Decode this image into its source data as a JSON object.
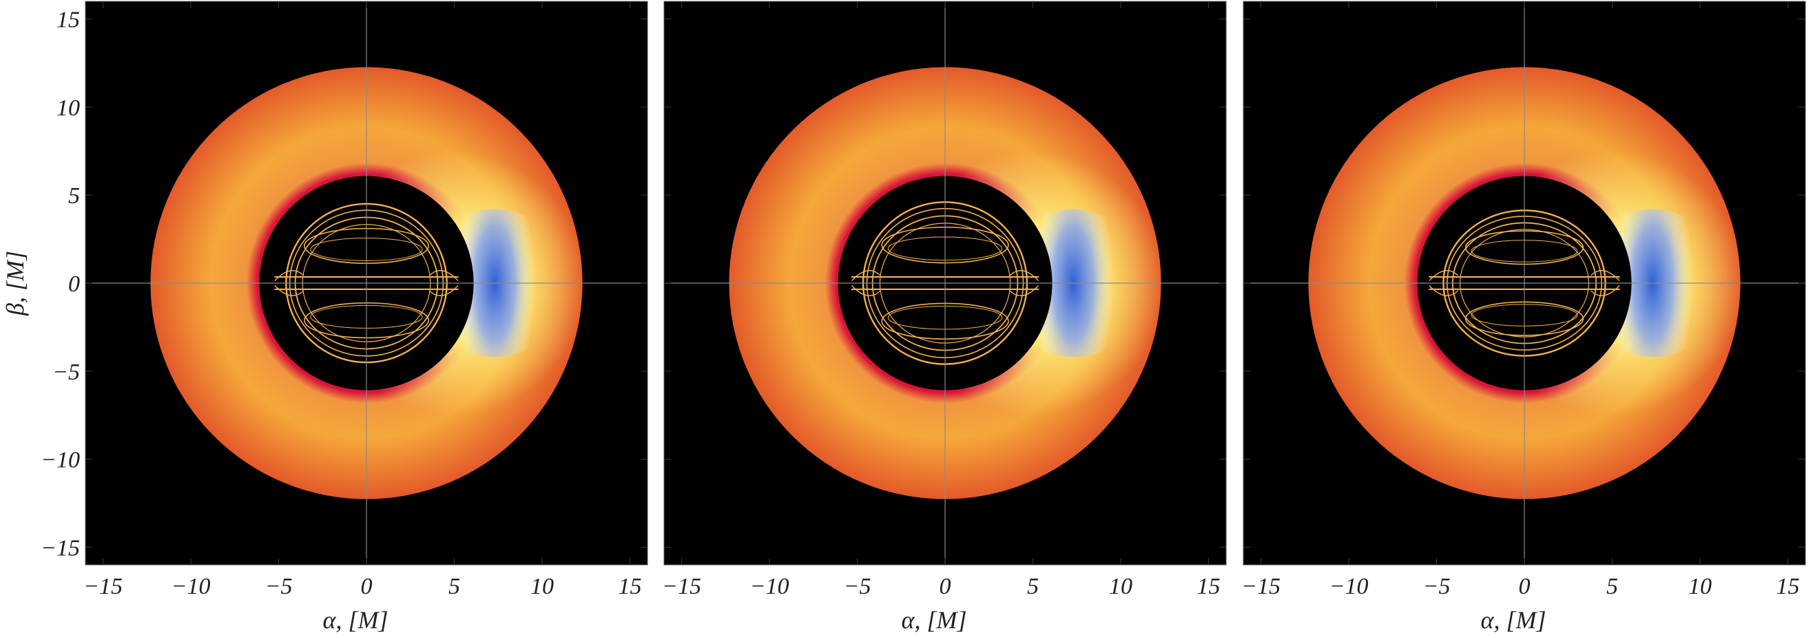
{
  "chart_data": [
    {
      "type": "heatmap",
      "title": "",
      "xlabel": "α, [M]",
      "ylabel": "β, [M]",
      "xlim": [
        -16,
        16
      ],
      "ylim": [
        -16,
        16
      ],
      "xticks": [
        -15,
        -10,
        -5,
        0,
        5,
        10,
        15
      ],
      "yticks": [
        -15,
        -10,
        -5,
        0,
        5,
        10,
        15
      ],
      "background": "#000000",
      "disk": {
        "outer_radius": 12.3,
        "inner_radius": 6.1,
        "blue_crescent_center_alpha": 7.3
      },
      "inner_structure": {
        "alpha_extent": [
          -5.2,
          5.2
        ],
        "beta_extent": [
          -4.5,
          4.5
        ],
        "variant": 1
      }
    },
    {
      "type": "heatmap",
      "title": "",
      "xlabel": "α, [M]",
      "ylabel": "",
      "xlim": [
        -16,
        16
      ],
      "ylim": [
        -16,
        16
      ],
      "xticks": [
        -15,
        -10,
        -5,
        0,
        5,
        10,
        15
      ],
      "yticks": [
        -15,
        -10,
        -5,
        0,
        5,
        10,
        15
      ],
      "background": "#000000",
      "disk": {
        "outer_radius": 12.3,
        "inner_radius": 6.1,
        "blue_crescent_center_alpha": 7.3
      },
      "inner_structure": {
        "alpha_extent": [
          -5.3,
          5.3
        ],
        "beta_extent": [
          -4.6,
          4.6
        ],
        "variant": 2
      }
    },
    {
      "type": "heatmap",
      "title": "",
      "xlabel": "α, [M]",
      "ylabel": "",
      "xlim": [
        -16,
        16
      ],
      "ylim": [
        -16,
        16
      ],
      "xticks": [
        -15,
        -10,
        -5,
        0,
        5,
        10,
        15
      ],
      "yticks": [
        -15,
        -10,
        -5,
        0,
        5,
        10,
        15
      ],
      "background": "#000000",
      "disk": {
        "outer_radius": 12.3,
        "inner_radius": 6.1,
        "blue_crescent_center_alpha": 7.3
      },
      "inner_structure": {
        "alpha_extent": [
          -5.4,
          5.4
        ],
        "beta_extent": [
          -4.3,
          4.3
        ],
        "variant": 3
      }
    }
  ],
  "colors": {
    "disk_outer": "#e35a2a",
    "disk_mid": "#f5a83a",
    "disk_bright": "#fff27a",
    "disk_inner_edge": "#d8143a",
    "blue_crescent": "#2f5fd6",
    "ring_color": "#f2b150",
    "axis_line": "#8a8a8a",
    "tick_color": "#333333"
  }
}
